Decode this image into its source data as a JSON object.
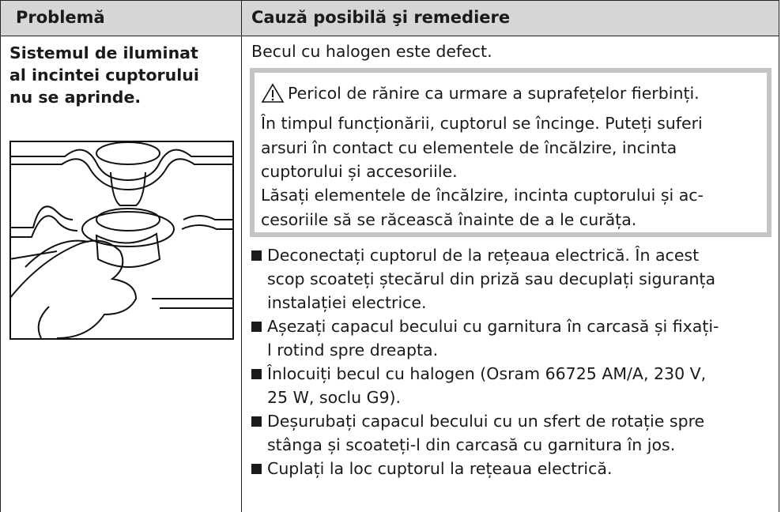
{
  "table": {
    "header": [
      "Problemă",
      "Cauză posibilă şi remediere"
    ],
    "problem": [
      "Sistemul de iluminat",
      "al incintei cuptorului",
      "nu se aprinde."
    ],
    "cause": "Becul cu halogen este defect.",
    "warning": {
      "title": "Pericol de rănire ca urmare a suprafețelor fierbinți.",
      "paragraphs": [
        [
          "În timpul funcționării, cuptorul se încinge. Puteți suferi",
          "arsuri în contact cu elementele de încălzire, incinta",
          "cuptorului și accesoriile."
        ],
        [
          "Lăsați elementele de încălzire, incinta cuptorului și ac-",
          "cesoriile să se răcească înainte de a le curăța."
        ]
      ]
    },
    "steps": [
      [
        "Deconectați cuptorul de la rețeaua electrică. În acest",
        "scop scoateți ștecărul din priză sau decuplați siguranța",
        "instalației electrice."
      ],
      [
        "Așezați capacul becului cu garnitura în carcasă și fixați-",
        "l rotind spre dreapta."
      ],
      [
        "Înlocuiți becul cu halogen (Osram 66725 AM/A, 230 V,",
        "25 W, soclu G9)."
      ],
      [
        "Deșurubați capacul becului cu un sfert de rotație spre",
        "stânga și scoateți-l din carcasă cu garnitura în jos."
      ],
      [
        "Cuplați la loc cuptorul la rețeaua electrică."
      ]
    ]
  }
}
